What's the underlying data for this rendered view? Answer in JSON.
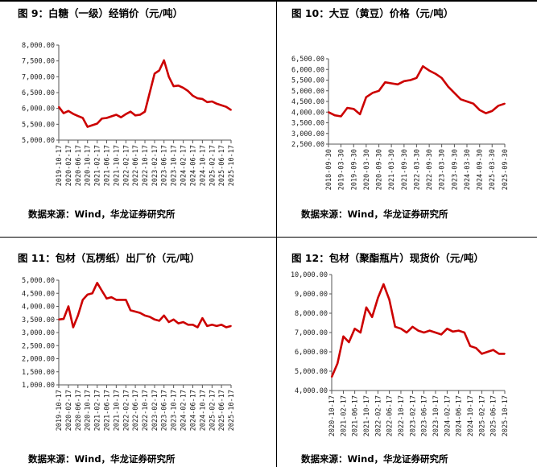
{
  "panels": [
    {
      "title": "图 9：白糖（一级）经销价（元/吨）",
      "source": "数据来源：Wind，华龙证券研究所",
      "chart_data": {
        "type": "line",
        "title": "",
        "xlabel": "",
        "ylabel": "",
        "ylim": [
          5000,
          8000
        ],
        "yticks": [
          "5,000.00",
          "5,500.00",
          "6,000.00",
          "6,500.00",
          "7,000.00",
          "7,500.00",
          "8,000.00"
        ],
        "xticks": [
          "2019-10-17",
          "2020-02-17",
          "2020-06-17",
          "2020-10-17",
          "2021-02-17",
          "2021-06-17",
          "2021-10-17",
          "2022-02-17",
          "2022-06-17",
          "2022-10-17",
          "2023-02-17",
          "2023-06-17",
          "2023-10-17",
          "2024-02-17",
          "2024-06-17",
          "2024-10-17",
          "2025-02-17",
          "2025-06-17",
          "2025-10-17"
        ],
        "x": [
          "2019-10-17",
          "2019-12-17",
          "2020-02-17",
          "2020-04-17",
          "2020-06-17",
          "2020-08-17",
          "2020-10-17",
          "2020-12-17",
          "2021-02-17",
          "2021-04-17",
          "2021-06-17",
          "2021-08-17",
          "2021-10-17",
          "2021-12-17",
          "2022-02-17",
          "2022-04-17",
          "2022-06-17",
          "2022-08-17",
          "2022-10-17",
          "2022-12-17",
          "2023-02-17",
          "2023-04-17",
          "2023-06-17",
          "2023-08-17",
          "2023-10-17",
          "2023-12-17",
          "2024-02-17",
          "2024-04-17",
          "2024-06-17",
          "2024-08-17",
          "2024-10-17",
          "2024-12-17",
          "2025-02-17",
          "2025-04-17",
          "2025-06-17",
          "2025-08-17",
          "2025-10-17"
        ],
        "series": [
          {
            "values": [
              6050,
              5850,
              5920,
              5830,
              5760,
              5700,
              5420,
              5470,
              5520,
              5680,
              5700,
              5750,
              5800,
              5720,
              5820,
              5900,
              5780,
              5800,
              5900,
              6500,
              7100,
              7200,
              7520,
              7000,
              6700,
              6720,
              6650,
              6550,
              6400,
              6320,
              6300,
              6200,
              6220,
              6150,
              6100,
              6050,
              5950
            ],
            "color": "#cc0000"
          }
        ]
      }
    },
    {
      "title": "图 10：大豆（黄豆）价格（元/吨）",
      "source": "数据来源：Wind，华龙证券研究所",
      "chart_data": {
        "type": "line",
        "title": "",
        "xlabel": "",
        "ylabel": "",
        "ylim": [
          2500,
          6500
        ],
        "yticks": [
          "2,500.00",
          "3,000.00",
          "3,500.00",
          "4,000.00",
          "4,500.00",
          "5,000.00",
          "5,500.00",
          "6,000.00",
          "6,500.00"
        ],
        "xticks": [
          "2018-09-30",
          "2019-03-30",
          "2019-09-30",
          "2020-03-30",
          "2020-09-30",
          "2021-03-30",
          "2021-09-30",
          "2022-03-30",
          "2022-09-30",
          "2023-03-30",
          "2023-09-30",
          "2024-03-30",
          "2024-09-30",
          "2025-03-30",
          "2025-09-30"
        ],
        "x": [
          "2018-09-30",
          "2018-12-30",
          "2019-03-30",
          "2019-06-30",
          "2019-09-30",
          "2019-12-30",
          "2020-03-30",
          "2020-06-30",
          "2020-09-30",
          "2020-12-30",
          "2021-03-30",
          "2021-06-30",
          "2021-09-30",
          "2021-12-30",
          "2022-03-30",
          "2022-06-30",
          "2022-09-30",
          "2022-12-30",
          "2023-03-30",
          "2023-06-30",
          "2023-09-30",
          "2023-12-30",
          "2024-03-30",
          "2024-06-30",
          "2024-09-30",
          "2024-12-30",
          "2025-03-30",
          "2025-06-30",
          "2025-09-30"
        ],
        "series": [
          {
            "values": [
              4000,
              3850,
              3800,
              4200,
              4150,
              3900,
              4700,
              4900,
              5000,
              5400,
              5350,
              5300,
              5450,
              5500,
              5600,
              6150,
              5950,
              5800,
              5600,
              5200,
              4900,
              4600,
              4500,
              4400,
              4100,
              3950,
              4050,
              4300,
              4400
            ],
            "color": "#cc0000"
          }
        ]
      }
    },
    {
      "title": "图 11：包材（瓦楞纸）出厂价（元/吨）",
      "source": "数据来源：Wind，华龙证券研究所",
      "chart_data": {
        "type": "line",
        "title": "",
        "xlabel": "",
        "ylabel": "",
        "ylim": [
          1000,
          5000
        ],
        "yticks": [
          "1,000.00",
          "1,500.00",
          "2,000.00",
          "2,500.00",
          "3,000.00",
          "3,500.00",
          "4,000.00",
          "4,500.00",
          "5,000.00"
        ],
        "xticks": [
          "2019-10-17",
          "2020-02-17",
          "2020-06-17",
          "2020-10-17",
          "2021-02-17",
          "2021-06-17",
          "2021-10-17",
          "2022-02-17",
          "2022-06-17",
          "2022-10-17",
          "2023-02-17",
          "2023-06-17",
          "2023-10-17",
          "2024-02-17",
          "2024-06-17",
          "2024-10-17",
          "2025-02-17",
          "2025-06-17",
          "2025-10-17"
        ],
        "x": [
          "2019-10-17",
          "2019-12-17",
          "2020-02-17",
          "2020-04-17",
          "2020-06-17",
          "2020-08-17",
          "2020-10-17",
          "2020-12-17",
          "2021-02-17",
          "2021-04-17",
          "2021-06-17",
          "2021-08-17",
          "2021-10-17",
          "2021-12-17",
          "2022-02-17",
          "2022-04-17",
          "2022-06-17",
          "2022-08-17",
          "2022-10-17",
          "2022-12-17",
          "2023-02-17",
          "2023-04-17",
          "2023-06-17",
          "2023-08-17",
          "2023-10-17",
          "2023-12-17",
          "2024-02-17",
          "2024-04-17",
          "2024-06-17",
          "2024-08-17",
          "2024-10-17",
          "2024-12-17",
          "2025-02-17",
          "2025-04-17",
          "2025-06-17",
          "2025-08-17",
          "2025-10-17"
        ],
        "series": [
          {
            "values": [
              3500,
              3520,
              4000,
              3200,
              3650,
              4250,
              4450,
              4500,
              4900,
              4600,
              4300,
              4350,
              4250,
              4250,
              4250,
              3850,
              3800,
              3750,
              3650,
              3600,
              3500,
              3450,
              3650,
              3400,
              3500,
              3350,
              3400,
              3300,
              3300,
              3200,
              3550,
              3250,
              3300,
              3250,
              3300,
              3200,
              3250
            ],
            "color": "#cc0000"
          }
        ]
      }
    },
    {
      "title": "图 12：包材（聚酯瓶片）现货价（元/吨）",
      "source": "数据来源：Wind，华龙证券研究所",
      "chart_data": {
        "type": "line",
        "title": "",
        "xlabel": "",
        "ylabel": "",
        "ylim": [
          4000,
          10000
        ],
        "yticks": [
          "4,000.00",
          "5,000.00",
          "6,000.00",
          "7,000.00",
          "8,000.00",
          "9,000.00",
          "10,000.00"
        ],
        "xticks": [
          "2020-10-17",
          "2021-02-17",
          "2021-06-17",
          "2021-10-17",
          "2022-02-17",
          "2022-06-17",
          "2022-10-17",
          "2023-02-17",
          "2023-06-17",
          "2023-10-17",
          "2024-02-17",
          "2024-06-17",
          "2024-10-17",
          "2025-02-17",
          "2025-06-17",
          "2025-10-17"
        ],
        "x": [
          "2020-10-17",
          "2020-12-17",
          "2021-02-17",
          "2021-04-17",
          "2021-06-17",
          "2021-08-17",
          "2021-10-17",
          "2021-12-17",
          "2022-02-17",
          "2022-04-17",
          "2022-06-17",
          "2022-08-17",
          "2022-10-17",
          "2022-12-17",
          "2023-02-17",
          "2023-04-17",
          "2023-06-17",
          "2023-08-17",
          "2023-10-17",
          "2023-12-17",
          "2024-02-17",
          "2024-04-17",
          "2024-06-17",
          "2024-08-17",
          "2024-10-17",
          "2024-12-17",
          "2025-02-17",
          "2025-04-17",
          "2025-06-17",
          "2025-08-17",
          "2025-10-17"
        ],
        "series": [
          {
            "values": [
              4700,
              5400,
              6800,
              6500,
              7200,
              7000,
              8300,
              7800,
              8800,
              9500,
              8700,
              7300,
              7200,
              7000,
              7300,
              7100,
              7000,
              7100,
              7000,
              6900,
              7200,
              7050,
              7100,
              7000,
              6300,
              6200,
              5900,
              6000,
              6100,
              5900,
              5900
            ],
            "color": "#cc0000"
          }
        ]
      }
    }
  ]
}
